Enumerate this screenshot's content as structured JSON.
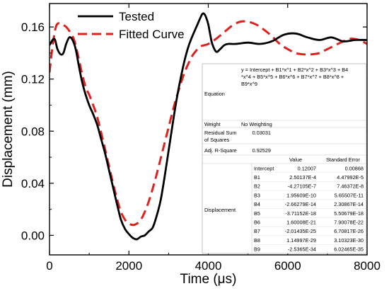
{
  "chart_data": {
    "type": "line",
    "title": "",
    "xlabel": "Time (μs)",
    "ylabel": "Displacement (mm)",
    "xlim": [
      0,
      8000
    ],
    "ylim": [
      -0.015,
      0.178
    ],
    "xticks": [
      0,
      2000,
      4000,
      6000,
      8000
    ],
    "yticks": [
      0.0,
      0.04,
      0.08,
      0.12,
      0.16
    ],
    "xtick_labels": [
      "0",
      "2000",
      "4000",
      "6000",
      "8000"
    ],
    "ytick_labels": [
      "0.00",
      "0.04",
      "0.08",
      "0.12",
      "0.16"
    ],
    "grid": false,
    "legend_position": "top-left",
    "series": [
      {
        "name": "Tested",
        "color": "#000000",
        "style": "solid",
        "x": [
          0,
          120,
          200,
          280,
          350,
          420,
          500,
          580,
          660,
          740,
          820,
          900,
          1000,
          1100,
          1200,
          1300,
          1400,
          1500,
          1600,
          1700,
          1800,
          1900,
          2000,
          2100,
          2200,
          2300,
          2400,
          2500,
          2600,
          2700,
          2800,
          2900,
          3000,
          3100,
          3200,
          3300,
          3400,
          3500,
          3600,
          3700,
          3800,
          3850,
          3900,
          3950,
          4000,
          4050,
          4100,
          4200,
          4300,
          4400,
          4500,
          4700,
          5000,
          5300,
          5600,
          5900,
          6200,
          6500,
          6800,
          7100,
          7400,
          7700,
          8000
        ],
        "y": [
          0.146,
          0.151,
          0.143,
          0.139,
          0.14,
          0.147,
          0.152,
          0.15,
          0.143,
          0.13,
          0.118,
          0.109,
          0.1,
          0.093,
          0.085,
          0.074,
          0.063,
          0.05,
          0.037,
          0.024,
          0.012,
          0.005,
          0.001,
          -0.002,
          -0.003,
          -0.001,
          0.0,
          0.003,
          0.006,
          0.015,
          0.027,
          0.045,
          0.065,
          0.085,
          0.104,
          0.12,
          0.134,
          0.145,
          0.153,
          0.16,
          0.167,
          0.17,
          0.17,
          0.167,
          0.162,
          0.154,
          0.147,
          0.141,
          0.143,
          0.146,
          0.147,
          0.147,
          0.148,
          0.147,
          0.149,
          0.154,
          0.155,
          0.152,
          0.15,
          0.152,
          0.149,
          0.15,
          0.15
        ]
      },
      {
        "name": "Fitted Curve",
        "color": "#e0211d",
        "style": "dashed",
        "x": [
          0,
          80,
          160,
          240,
          320,
          420,
          520,
          620,
          720,
          820,
          920,
          1000,
          1100,
          1200,
          1300,
          1400,
          1500,
          1600,
          1700,
          1800,
          1900,
          2000,
          2100,
          2200,
          2300,
          2400,
          2500,
          2600,
          2700,
          2800,
          2900,
          3000,
          3100,
          3200,
          3300,
          3400,
          3500,
          3600,
          3700,
          3800,
          3900,
          4000,
          4200,
          4400,
          4600,
          4800,
          5000,
          5200,
          5400,
          5600,
          5800,
          6000,
          6200,
          6400,
          6600,
          6800,
          7000,
          7200,
          7400,
          7600,
          7800,
          8000
        ],
        "y": [
          0.125,
          0.146,
          0.16,
          0.163,
          0.162,
          0.16,
          0.156,
          0.15,
          0.138,
          0.124,
          0.113,
          0.108,
          0.1,
          0.091,
          0.079,
          0.066,
          0.053,
          0.04,
          0.028,
          0.018,
          0.012,
          0.009,
          0.008,
          0.009,
          0.012,
          0.018,
          0.026,
          0.036,
          0.047,
          0.059,
          0.071,
          0.083,
          0.095,
          0.106,
          0.116,
          0.125,
          0.132,
          0.138,
          0.142,
          0.145,
          0.146,
          0.147,
          0.151,
          0.156,
          0.161,
          0.164,
          0.164,
          0.162,
          0.158,
          0.153,
          0.147,
          0.143,
          0.14,
          0.139,
          0.139,
          0.14,
          0.143,
          0.146,
          0.149,
          0.151,
          0.15,
          0.147
        ]
      }
    ]
  },
  "fit_table": {
    "equation_label": "Equation",
    "equation_text": [
      "y = Intercept + B1*x^1 + B2*x^2 + B3*x^3 + B4",
      "*x^4 + B5*x^5 + B6*x^6 + B7*x^7 + B8*x^8 +",
      "B9*x^9"
    ],
    "weight_label": "Weight",
    "weight_value": "No Weighting",
    "rss_label_1": "Residual Sum",
    "rss_label_2": "of Squares",
    "rss_value": "0.03031",
    "adjr_label": "Adj. R-Square",
    "adjr_value": "0.92529",
    "value_header": "Value",
    "se_header": "Standard Error",
    "group_label": "Displacement",
    "params": [
      {
        "name": "Intercept",
        "value": "0.12007",
        "se": "0.00868"
      },
      {
        "name": "B1",
        "value": "2.50137E-4",
        "se": "4.47992E-5"
      },
      {
        "name": "B2",
        "value": "-4.27105E-7",
        "se": "7.46372E-8"
      },
      {
        "name": "B3",
        "value": "1.95609E-10",
        "se": "5.65507E-11"
      },
      {
        "name": "B4",
        "value": "-2.66279E-14",
        "se": "2.30867E-14"
      },
      {
        "name": "B5",
        "value": "-3.71152E-18",
        "se": "5.50679E-18"
      },
      {
        "name": "B6",
        "value": "1.60008E-21",
        "se": "7.90078E-22"
      },
      {
        "name": "B7",
        "value": "-2.01435E-25",
        "se": "6.70817E-26"
      },
      {
        "name": "B8",
        "value": "1.14997E-29",
        "se": "3.10323E-30"
      },
      {
        "name": "B9",
        "value": "-2.5365E-34",
        "se": "6.02465E-35"
      }
    ]
  }
}
